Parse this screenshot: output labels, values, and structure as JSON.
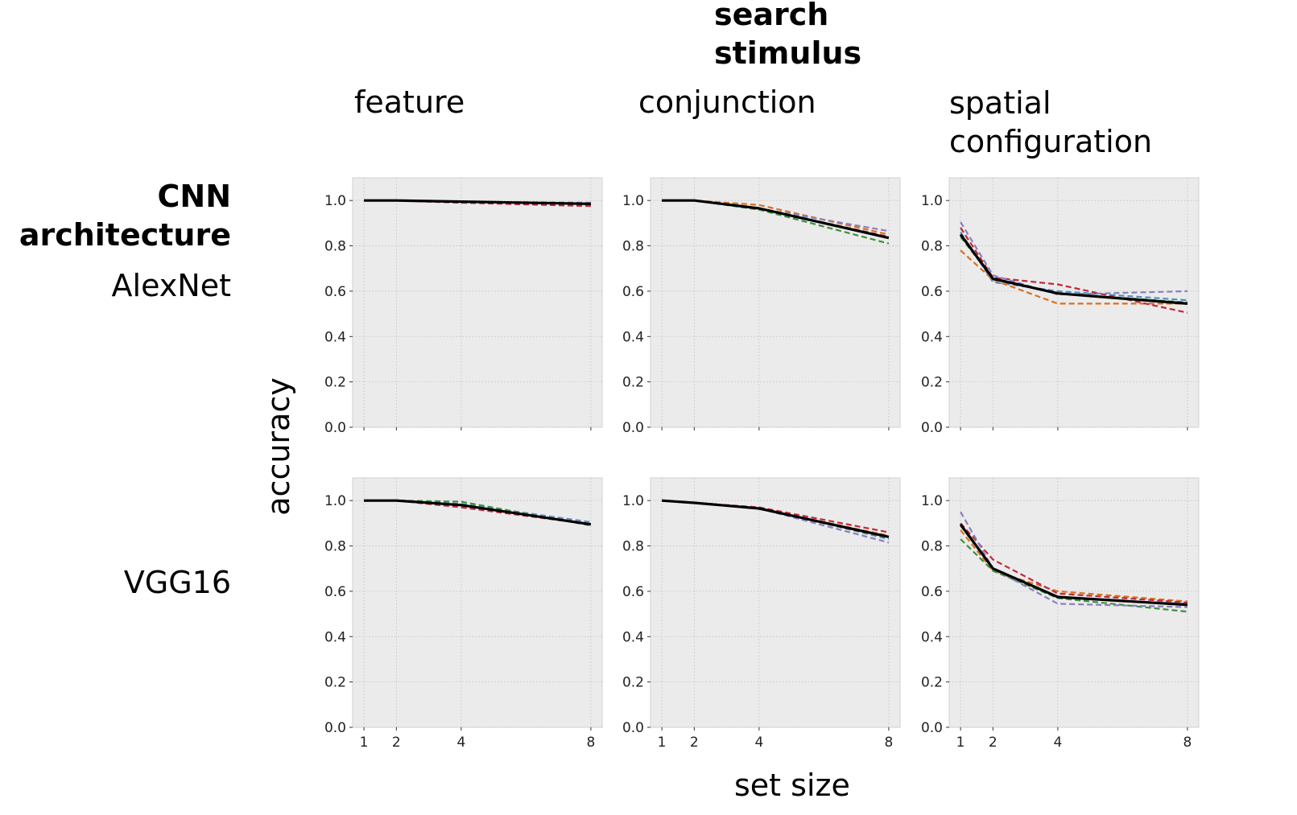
{
  "figure": {
    "col_header": "search stimulus",
    "row_header": "CNN architecture",
    "xlabel": "set size",
    "ylabel": "accuracy",
    "columns": [
      "feature",
      "conjunction",
      "spatial configuration"
    ],
    "rows": [
      "AlexNet",
      "VGG16"
    ]
  },
  "colors": {
    "panel_bg": "#ebebeb",
    "grid": "#c9c9c9",
    "mean": "#000000",
    "blue": "#4c8fbf",
    "orange": "#d9701f",
    "green": "#3f8f3a",
    "red": "#c0283a",
    "purple": "#8a7fbf"
  },
  "chart_data": [
    {
      "type": "line",
      "row": "AlexNet",
      "column": "feature",
      "x": [
        1,
        2,
        4,
        8
      ],
      "ylim": [
        0.0,
        1.1
      ],
      "yticks": [
        0.0,
        0.2,
        0.4,
        0.6,
        0.8,
        1.0
      ],
      "series": [
        {
          "style": "dashed",
          "color": "#4c8fbf",
          "values": [
            1.0,
            1.0,
            0.995,
            0.985
          ]
        },
        {
          "style": "dashed",
          "color": "#d9701f",
          "values": [
            1.0,
            1.0,
            0.995,
            0.98
          ]
        },
        {
          "style": "dashed",
          "color": "#3f8f3a",
          "values": [
            1.0,
            1.0,
            0.995,
            0.985
          ]
        },
        {
          "style": "dashed",
          "color": "#c0283a",
          "values": [
            1.0,
            1.0,
            0.99,
            0.975
          ]
        },
        {
          "style": "dashed",
          "color": "#8a7fbf",
          "values": [
            1.0,
            1.0,
            0.995,
            0.99
          ]
        },
        {
          "style": "solid",
          "color": "#000000",
          "values": [
            1.0,
            1.0,
            0.995,
            0.985
          ]
        }
      ]
    },
    {
      "type": "line",
      "row": "AlexNet",
      "column": "conjunction",
      "x": [
        1,
        2,
        4,
        8
      ],
      "ylim": [
        0.0,
        1.1
      ],
      "yticks": [
        0.0,
        0.2,
        0.4,
        0.6,
        0.8,
        1.0
      ],
      "series": [
        {
          "style": "dashed",
          "color": "#4c8fbf",
          "values": [
            1.0,
            1.0,
            0.96,
            0.84
          ]
        },
        {
          "style": "dashed",
          "color": "#d9701f",
          "values": [
            1.0,
            1.0,
            0.98,
            0.85
          ]
        },
        {
          "style": "dashed",
          "color": "#3f8f3a",
          "values": [
            1.0,
            1.0,
            0.96,
            0.81
          ]
        },
        {
          "style": "dashed",
          "color": "#c0283a",
          "values": [
            1.0,
            1.0,
            0.965,
            0.84
          ]
        },
        {
          "style": "dashed",
          "color": "#8a7fbf",
          "values": [
            1.0,
            1.0,
            0.965,
            0.865
          ]
        },
        {
          "style": "solid",
          "color": "#000000",
          "values": [
            1.0,
            1.0,
            0.965,
            0.835
          ]
        }
      ]
    },
    {
      "type": "line",
      "row": "AlexNet",
      "column": "spatial configuration",
      "x": [
        1,
        2,
        4,
        8
      ],
      "ylim": [
        0.0,
        1.1
      ],
      "yticks": [
        0.0,
        0.2,
        0.4,
        0.6,
        0.8,
        1.0
      ],
      "series": [
        {
          "style": "dashed",
          "color": "#4c8fbf",
          "values": [
            0.86,
            0.64,
            0.6,
            0.56
          ]
        },
        {
          "style": "dashed",
          "color": "#d9701f",
          "values": [
            0.78,
            0.65,
            0.545,
            0.545
          ]
        },
        {
          "style": "dashed",
          "color": "#3f8f3a",
          "values": [
            0.84,
            0.655,
            0.59,
            0.55
          ]
        },
        {
          "style": "dashed",
          "color": "#c0283a",
          "values": [
            0.88,
            0.66,
            0.63,
            0.505
          ]
        },
        {
          "style": "dashed",
          "color": "#8a7fbf",
          "values": [
            0.905,
            0.67,
            0.585,
            0.6
          ]
        },
        {
          "style": "solid",
          "color": "#000000",
          "values": [
            0.85,
            0.655,
            0.59,
            0.545
          ]
        }
      ]
    },
    {
      "type": "line",
      "row": "VGG16",
      "column": "feature",
      "x": [
        1,
        2,
        4,
        8
      ],
      "ylim": [
        0.0,
        1.1
      ],
      "yticks": [
        0.0,
        0.2,
        0.4,
        0.6,
        0.8,
        1.0
      ],
      "series": [
        {
          "style": "dashed",
          "color": "#4c8fbf",
          "values": [
            1.0,
            1.0,
            0.985,
            0.905
          ]
        },
        {
          "style": "dashed",
          "color": "#d9701f",
          "values": [
            1.0,
            1.0,
            0.98,
            0.9
          ]
        },
        {
          "style": "dashed",
          "color": "#3f8f3a",
          "values": [
            1.0,
            1.0,
            0.995,
            0.89
          ]
        },
        {
          "style": "dashed",
          "color": "#c0283a",
          "values": [
            1.0,
            1.0,
            0.97,
            0.895
          ]
        },
        {
          "style": "dashed",
          "color": "#8a7fbf",
          "values": [
            1.0,
            1.0,
            0.98,
            0.9
          ]
        },
        {
          "style": "solid",
          "color": "#000000",
          "values": [
            1.0,
            1.0,
            0.98,
            0.895
          ]
        }
      ]
    },
    {
      "type": "line",
      "row": "VGG16",
      "column": "conjunction",
      "x": [
        1,
        2,
        4,
        8
      ],
      "ylim": [
        0.0,
        1.1
      ],
      "yticks": [
        0.0,
        0.2,
        0.4,
        0.6,
        0.8,
        1.0
      ],
      "series": [
        {
          "style": "dashed",
          "color": "#4c8fbf",
          "values": [
            1.0,
            0.99,
            0.97,
            0.83
          ]
        },
        {
          "style": "dashed",
          "color": "#d9701f",
          "values": [
            1.0,
            0.99,
            0.965,
            0.845
          ]
        },
        {
          "style": "dashed",
          "color": "#3f8f3a",
          "values": [
            1.0,
            0.99,
            0.965,
            0.835
          ]
        },
        {
          "style": "dashed",
          "color": "#c0283a",
          "values": [
            1.0,
            0.99,
            0.97,
            0.86
          ]
        },
        {
          "style": "dashed",
          "color": "#8a7fbf",
          "values": [
            1.0,
            0.99,
            0.965,
            0.815
          ]
        },
        {
          "style": "solid",
          "color": "#000000",
          "values": [
            1.0,
            0.99,
            0.965,
            0.84
          ]
        }
      ]
    },
    {
      "type": "line",
      "row": "VGG16",
      "column": "spatial configuration",
      "x": [
        1,
        2,
        4,
        8
      ],
      "ylim": [
        0.0,
        1.1
      ],
      "yticks": [
        0.0,
        0.2,
        0.4,
        0.6,
        0.8,
        1.0
      ],
      "series": [
        {
          "style": "dashed",
          "color": "#4c8fbf",
          "values": [
            0.89,
            0.7,
            0.57,
            0.545
          ]
        },
        {
          "style": "dashed",
          "color": "#d9701f",
          "values": [
            0.87,
            0.69,
            0.6,
            0.555
          ]
        },
        {
          "style": "dashed",
          "color": "#3f8f3a",
          "values": [
            0.83,
            0.69,
            0.57,
            0.51
          ]
        },
        {
          "style": "dashed",
          "color": "#c0283a",
          "values": [
            0.9,
            0.74,
            0.59,
            0.55
          ]
        },
        {
          "style": "dashed",
          "color": "#8a7fbf",
          "values": [
            0.95,
            0.7,
            0.545,
            0.53
          ]
        },
        {
          "style": "solid",
          "color": "#000000",
          "values": [
            0.895,
            0.7,
            0.575,
            0.54
          ]
        }
      ]
    }
  ]
}
